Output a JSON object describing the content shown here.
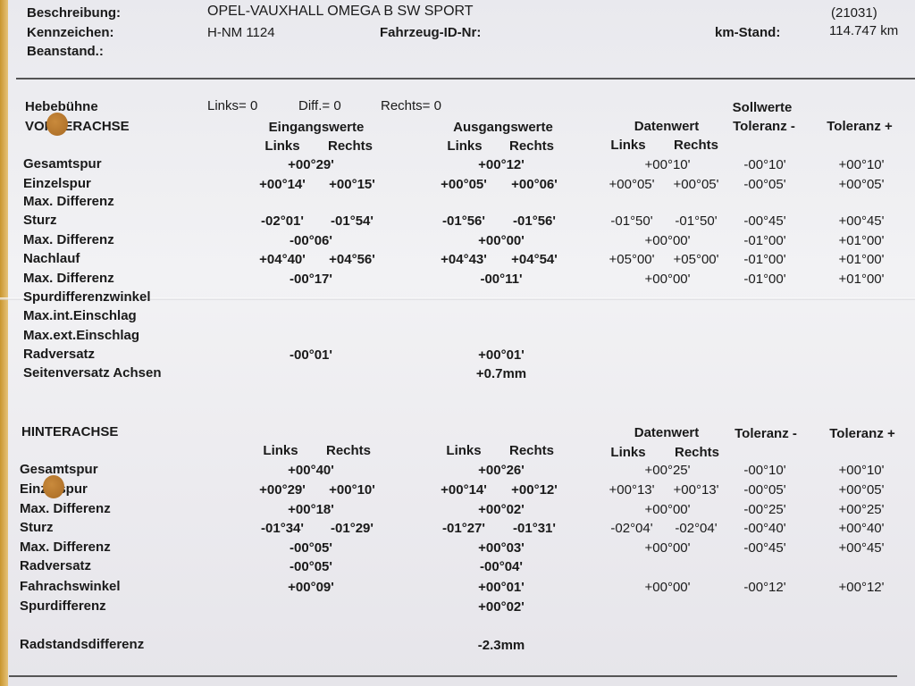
{
  "header": {
    "beschreibung_label": "Beschreibung:",
    "beschreibung_value": "OPEL-VAUXHALL OMEGA B SW SPORT",
    "code": "(21031)",
    "kennzeichen_label": "Kennzeichen:",
    "kennzeichen_value": "H-NM 1124",
    "fahrzeug_id_label": "Fahrzeug-ID-Nr:",
    "km_label": "km-Stand:",
    "km_value": "114.747 km",
    "beanstand_label": "Beanstand.:"
  },
  "hebebuehne": {
    "label": "Hebebühne",
    "links": "Links= 0",
    "diff": "Diff.= 0",
    "rechts": "Rechts= 0"
  },
  "columns": {
    "sollwerte": "Sollwerte",
    "eingangswerte": "Eingangswerte",
    "ausgangswerte": "Ausgangswerte",
    "datenwert": "Datenwert",
    "toleranz_minus": "Toleranz -",
    "toleranz_plus": "Toleranz +",
    "links": "Links",
    "rechts": "Rechts"
  },
  "front": {
    "title": "VORDERACHSE",
    "rows": [
      {
        "label": "Gesamtspur",
        "in_c": "+00°29'",
        "out_c": "+00°12'",
        "dw_c": "+00°10'",
        "tmin": "-00°10'",
        "tplus": "+00°10'"
      },
      {
        "label": "Einzelspur",
        "in_l": "+00°14'",
        "in_r": "+00°15'",
        "out_l": "+00°05'",
        "out_r": "+00°06'",
        "dw_l": "+00°05'",
        "dw_r": "+00°05'",
        "tmin": "-00°05'",
        "tplus": "+00°05'"
      },
      {
        "label": "Max. Differenz"
      },
      {
        "label": "Sturz",
        "in_l": "-02°01'",
        "in_r": "-01°54'",
        "out_l": "-01°56'",
        "out_r": "-01°56'",
        "dw_l": "-01°50'",
        "dw_r": "-01°50'",
        "tmin": "-00°45'",
        "tplus": "+00°45'"
      },
      {
        "label": "Max. Differenz",
        "in_c": "-00°06'",
        "out_c": "+00°00'",
        "dw_c": "+00°00'",
        "tmin": "-01°00'",
        "tplus": "+01°00'"
      },
      {
        "label": "Nachlauf",
        "in_l": "+04°40'",
        "in_r": "+04°56'",
        "out_l": "+04°43'",
        "out_r": "+04°54'",
        "dw_l": "+05°00'",
        "dw_r": "+05°00'",
        "tmin": "-01°00'",
        "tplus": "+01°00'"
      },
      {
        "label": "Max. Differenz",
        "in_c": "-00°17'",
        "out_c": "-00°11'",
        "dw_c": "+00°00'",
        "tmin": "-01°00'",
        "tplus": "+01°00'"
      },
      {
        "label": "Spurdifferenzwinkel"
      },
      {
        "label": "Max.int.Einschlag"
      },
      {
        "label": "Max.ext.Einschlag"
      },
      {
        "label": "Radversatz",
        "in_c": "-00°01'",
        "out_c": "+00°01'"
      },
      {
        "label": "Seitenversatz Achsen",
        "out_c": "+0.7mm"
      }
    ]
  },
  "rear": {
    "title": "HINTERACHSE",
    "rows": [
      {
        "label": "Gesamtspur",
        "in_c": "+00°40'",
        "out_c": "+00°26'",
        "dw_c": "+00°25'",
        "tmin": "-00°10'",
        "tplus": "+00°10'"
      },
      {
        "label": "Einzelspur",
        "in_l": "+00°29'",
        "in_r": "+00°10'",
        "out_l": "+00°14'",
        "out_r": "+00°12'",
        "dw_l": "+00°13'",
        "dw_r": "+00°13'",
        "tmin": "-00°05'",
        "tplus": "+00°05'"
      },
      {
        "label": "Max. Differenz",
        "in_c": "+00°18'",
        "out_c": "+00°02'",
        "dw_c": "+00°00'",
        "tmin": "-00°25'",
        "tplus": "+00°25'"
      },
      {
        "label": "Sturz",
        "in_l": "-01°34'",
        "in_r": "-01°29'",
        "out_l": "-01°27'",
        "out_r": "-01°31'",
        "dw_l": "-02°04'",
        "dw_r": "-02°04'",
        "tmin": "-00°40'",
        "tplus": "+00°40'"
      },
      {
        "label": "Max. Differenz",
        "in_c": "-00°05'",
        "out_c": "+00°03'",
        "dw_c": "+00°00'",
        "tmin": "-00°45'",
        "tplus": "+00°45'"
      },
      {
        "label": "Radversatz",
        "in_c": "-00°05'",
        "out_c": "-00°04'"
      },
      {
        "label": "Fahrachswinkel",
        "in_c": "+00°09'",
        "out_c": "+00°01'",
        "dw_c": "+00°00'",
        "tmin": "-00°12'",
        "tplus": "+00°12'"
      },
      {
        "label": "Spurdifferenz",
        "out_c": "+00°02'"
      },
      {
        "label": "Radstandsdifferenz",
        "out_c": "-2.3mm"
      }
    ]
  }
}
